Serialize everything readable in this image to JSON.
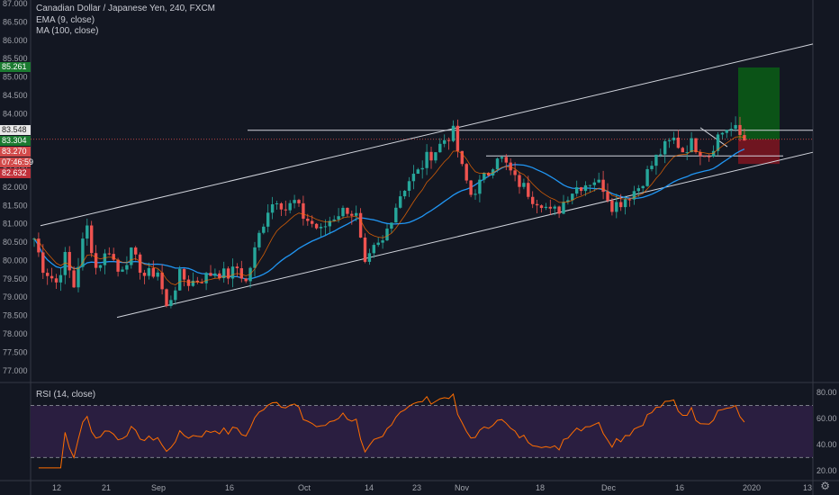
{
  "header": {
    "title": "Canadian Dollar / Japanese Yen, 240, FXCM",
    "ema": "EMA (9, close)",
    "ma": "MA (100, close)"
  },
  "rsi_title": "RSI (14, close)",
  "colors": {
    "bg": "#131722",
    "up": "#26a69a",
    "down": "#ef5350",
    "ma": "#2196f3",
    "ema": "#ff6d00",
    "rsi": "#ff6d00",
    "rsi_band": "#2a1e40",
    "target": "#0b5a16",
    "stop": "#7a1520",
    "channel": "#d1d4dc",
    "current_line": "#ef5350"
  },
  "price_labels": {
    "target": "85.261",
    "level": "83.548",
    "last": "83.304",
    "stop_top": "83.270",
    "countdown": "07:46:59",
    "stop": "82.632"
  },
  "chart_data": [
    {
      "type": "candlestick",
      "title": "Canadian Dollar / Japanese Yen, 240, FXCM",
      "ylim": [
        76.7,
        87.1
      ],
      "y_ticks": [
        "77.000",
        "77.500",
        "78.000",
        "78.500",
        "79.000",
        "79.500",
        "80.000",
        "80.500",
        "81.000",
        "81.500",
        "82.000",
        "82.500",
        "83.000",
        "83.500",
        "84.000",
        "84.500",
        "85.000",
        "85.500",
        "86.000",
        "86.500",
        "87.000"
      ],
      "x_ticks": [
        "12",
        "21",
        "Sep",
        "16",
        "Oct",
        "14",
        "23",
        "Nov",
        "18",
        "Dec",
        "16",
        "2020",
        "13"
      ],
      "anchors": [
        [
          0,
          80.6
        ],
        [
          2,
          79.8
        ],
        [
          5,
          79.4
        ],
        [
          7,
          80.1
        ],
        [
          9,
          79.3
        ],
        [
          11,
          80.5
        ],
        [
          12,
          80.9
        ],
        [
          14,
          79.8
        ],
        [
          17,
          80.3
        ],
        [
          19,
          79.7
        ],
        [
          22,
          80.2
        ],
        [
          25,
          79.6
        ],
        [
          28,
          79.7
        ],
        [
          30,
          78.7
        ],
        [
          33,
          79.6
        ],
        [
          35,
          79.4
        ],
        [
          38,
          79.5
        ],
        [
          41,
          79.7
        ],
        [
          44,
          79.6
        ],
        [
          46,
          79.8
        ],
        [
          48,
          79.4
        ],
        [
          51,
          80.7
        ],
        [
          53,
          81.4
        ],
        [
          55,
          81.7
        ],
        [
          57,
          81.4
        ],
        [
          59,
          81.6
        ],
        [
          61,
          81.2
        ],
        [
          63,
          81.0
        ],
        [
          65,
          80.8
        ],
        [
          67,
          81.1
        ],
        [
          69,
          81.3
        ],
        [
          71,
          81.4
        ],
        [
          73,
          81.2
        ],
        [
          75,
          79.8
        ],
        [
          77,
          80.3
        ],
        [
          79,
          80.5
        ],
        [
          81,
          81.2
        ],
        [
          83,
          81.8
        ],
        [
          85,
          82.2
        ],
        [
          87,
          82.4
        ],
        [
          89,
          82.8
        ],
        [
          91,
          83.0
        ],
        [
          93,
          83.3
        ],
        [
          95,
          83.5
        ],
        [
          97,
          82.5
        ],
        [
          99,
          81.8
        ],
        [
          101,
          82.1
        ],
        [
          103,
          82.4
        ],
        [
          105,
          82.9
        ],
        [
          107,
          82.6
        ],
        [
          109,
          82.2
        ],
        [
          111,
          82.0
        ],
        [
          113,
          81.7
        ],
        [
          115,
          81.6
        ],
        [
          117,
          81.3
        ],
        [
          119,
          81.4
        ],
        [
          121,
          81.8
        ],
        [
          123,
          82.0
        ],
        [
          125,
          82.1
        ],
        [
          127,
          82.2
        ],
        [
          129,
          82.0
        ],
        [
          131,
          81.5
        ],
        [
          133,
          81.6
        ],
        [
          135,
          81.8
        ],
        [
          137,
          82.0
        ],
        [
          139,
          82.4
        ],
        [
          141,
          82.8
        ],
        [
          143,
          83.1
        ],
        [
          145,
          83.3
        ],
        [
          147,
          83.0
        ],
        [
          149,
          83.2
        ],
        [
          151,
          83.0
        ],
        [
          153,
          82.9
        ],
        [
          155,
          83.4
        ],
        [
          157,
          83.6
        ],
        [
          159,
          83.55
        ],
        [
          161,
          83.27
        ]
      ],
      "overlays": [
        "EMA (9, close)",
        "MA (100, close)",
        "ascending channel",
        "resistance 83.548",
        "target 85.261",
        "stop 82.632"
      ]
    },
    {
      "type": "line",
      "title": "RSI (14, close)",
      "ylim": [
        15,
        87
      ],
      "y_ticks": [
        "20.00",
        "40.00",
        "60.00",
        "80.00"
      ],
      "bands": [
        30,
        70
      ]
    }
  ]
}
